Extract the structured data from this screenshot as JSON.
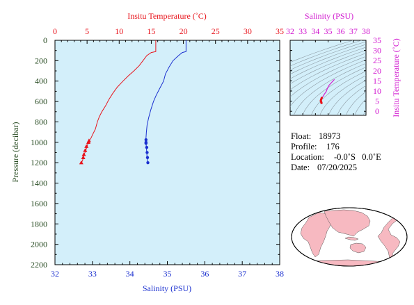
{
  "chart_data": [
    {
      "type": "line",
      "top_axis": {
        "label": "Insitu Temperature (˚C)",
        "range": [
          0,
          35
        ],
        "ticks": [
          0,
          5,
          10,
          15,
          20,
          25,
          30,
          35
        ],
        "color": "#e8141c"
      },
      "bottom_axis": {
        "label": "Salinity (PSU)",
        "range": [
          32,
          38
        ],
        "ticks": [
          32,
          33,
          34,
          35,
          36,
          37,
          38
        ],
        "color": "#1a2fcf"
      },
      "y_axis": {
        "label": "Pressure (decibar)",
        "range": [
          0,
          2200
        ],
        "reversed": true,
        "ticks": [
          0,
          200,
          400,
          600,
          800,
          1000,
          1200,
          1400,
          1600,
          1800,
          2000,
          2200
        ],
        "color": "#2a4d24"
      },
      "grid": false,
      "background": "#d3effa",
      "series": [
        {
          "color": "#e8141c",
          "marker": "triangle",
          "points": [
            [
              15.7,
              0
            ],
            [
              15.7,
              60
            ],
            [
              15.7,
              110
            ],
            [
              15.0,
              120
            ],
            [
              14.3,
              150
            ],
            [
              13.7,
              200
            ],
            [
              13.1,
              250
            ],
            [
              12.3,
              300
            ],
            [
              11.4,
              350
            ],
            [
              10.6,
              400
            ],
            [
              9.7,
              460
            ],
            [
              9.0,
              520
            ],
            [
              8.4,
              580
            ],
            [
              7.9,
              640
            ],
            [
              7.3,
              700
            ],
            [
              6.9,
              750
            ],
            [
              6.6,
              800
            ],
            [
              6.3,
              870
            ],
            [
              5.9,
              920
            ],
            [
              5.6,
              960
            ],
            [
              5.3,
              985
            ],
            [
              5.2,
              1000
            ],
            [
              5.0,
              1040
            ],
            [
              4.8,
              1080
            ],
            [
              4.6,
              1110
            ],
            [
              4.4,
              1150
            ],
            [
              4.3,
              1180
            ],
            [
              4.1,
              1200
            ]
          ],
          "markers": [
            [
              5.3,
              985
            ],
            [
              5.2,
              1000
            ],
            [
              4.9,
              1040
            ],
            [
              4.7,
              1080
            ],
            [
              4.5,
              1120
            ],
            [
              4.4,
              1150
            ],
            [
              4.1,
              1200
            ]
          ]
        },
        {
          "color": "#1a2fcf",
          "marker": "dot",
          "points": [
            [
              35.5,
              0
            ],
            [
              35.5,
              60
            ],
            [
              35.5,
              110
            ],
            [
              35.4,
              120
            ],
            [
              35.3,
              150
            ],
            [
              35.15,
              200
            ],
            [
              35.05,
              260
            ],
            [
              34.95,
              330
            ],
            [
              34.9,
              400
            ],
            [
              34.8,
              470
            ],
            [
              34.7,
              540
            ],
            [
              34.63,
              600
            ],
            [
              34.56,
              680
            ],
            [
              34.5,
              760
            ],
            [
              34.46,
              830
            ],
            [
              34.44,
              900
            ],
            [
              34.43,
              960
            ],
            [
              34.43,
              1000
            ],
            [
              34.44,
              1050
            ],
            [
              34.45,
              1100
            ],
            [
              34.46,
              1150
            ],
            [
              34.48,
              1200
            ]
          ],
          "markers": [
            [
              34.43,
              975
            ],
            [
              34.43,
              1000
            ],
            [
              34.43,
              1010
            ],
            [
              34.45,
              1050
            ],
            [
              34.46,
              1100
            ],
            [
              34.47,
              1150
            ],
            [
              34.48,
              1200
            ]
          ]
        }
      ]
    },
    {
      "type": "scatter",
      "x_axis": {
        "label": "Salinity (PSU)",
        "range": [
          32,
          38
        ],
        "ticks": [
          32,
          33,
          34,
          35,
          36,
          37,
          38
        ],
        "color": "#d21bd0"
      },
      "y_axis": {
        "label": "Insitu Temperature (˚C)",
        "range": [
          -2,
          35
        ],
        "ticks": [
          0,
          5,
          10,
          15,
          20,
          25,
          30,
          35
        ],
        "color": "#d21bd0"
      },
      "density_contours": true,
      "background": "#d3effa",
      "points": [
        [
          35.5,
          15.7
        ],
        [
          35.3,
          14.3
        ],
        [
          35.1,
          13.0
        ],
        [
          34.95,
          11.4
        ],
        [
          34.85,
          9.7
        ],
        [
          34.7,
          8.4
        ],
        [
          34.6,
          7.3
        ],
        [
          34.5,
          6.6
        ],
        [
          34.45,
          5.9
        ],
        [
          34.43,
          5.3
        ],
        [
          34.44,
          4.9
        ],
        [
          34.46,
          4.5
        ],
        [
          34.48,
          4.1
        ]
      ]
    }
  ],
  "float_info": [
    {
      "label": "Float:",
      "value": "18973"
    },
    {
      "label": "Profile:",
      "value": "176"
    },
    {
      "label": "Location:",
      "value": "-0.0˚S   0.0˚E"
    },
    {
      "label": "Date:",
      "value": "07/20/2025"
    }
  ],
  "map": {
    "ocean_color": "#ffffff",
    "land_color": "#f7b9c1"
  }
}
